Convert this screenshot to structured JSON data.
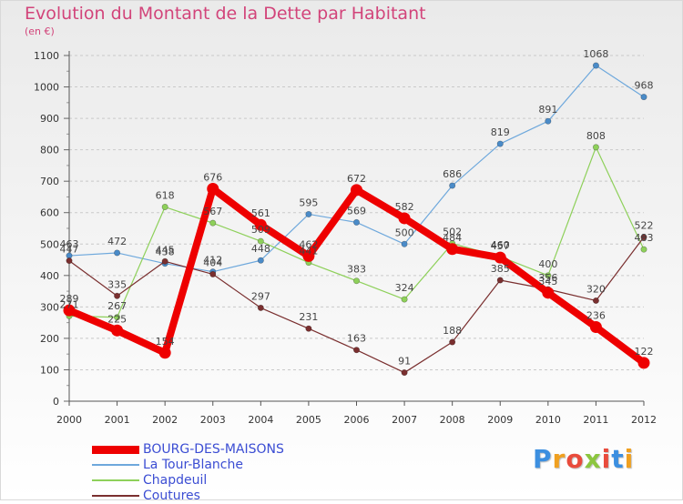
{
  "title": "Evolution du Montant de la Dette par Habitant",
  "subtitle": "(en €)",
  "colors": {
    "title": "#d2447a",
    "legend_text": "#3b4dd3",
    "axis_text": "#333333",
    "grid": "#c8c8c8"
  },
  "legend": {
    "items": [
      {
        "label": "BOURG-DES-MAISONS",
        "color": "#ee0000"
      },
      {
        "label": "La Tour-Blanche",
        "color": "#6ea8dc"
      },
      {
        "label": "Chapdeuil",
        "color": "#8ed05a"
      },
      {
        "label": "Coutures",
        "color": "#7a2f2f"
      }
    ]
  },
  "logo": {
    "text": "Proxiti",
    "letter_colors": [
      "#3c8fe0",
      "#f0a020",
      "#e94b3c",
      "#8cc63f",
      "#e94b3c",
      "#3c8fe0",
      "#f0a020"
    ]
  },
  "chart_data": {
    "type": "line",
    "title": "Evolution du Montant de la Dette par Habitant",
    "subtitle": "(en €)",
    "xlabel": "",
    "ylabel": "",
    "x": [
      "2000",
      "2001",
      "2002",
      "2003",
      "2004",
      "2005",
      "2006",
      "2007",
      "2008",
      "2009",
      "2010",
      "2011",
      "2012"
    ],
    "ylim": [
      0,
      1100
    ],
    "yticks": [
      0,
      100,
      200,
      300,
      400,
      500,
      600,
      700,
      800,
      900,
      1000,
      1100
    ],
    "grid": "horizontal",
    "legend_position": "bottom-left",
    "series": [
      {
        "name": "BOURG-DES-MAISONS",
        "color": "#ee0000",
        "values": [
          289,
          225,
          154,
          676,
          561,
          462,
          672,
          582,
          484,
          457,
          345,
          236,
          122
        ]
      },
      {
        "name": "La Tour-Blanche",
        "color": "#4a8bc8",
        "values": [
          463,
          472,
          438,
          412,
          448,
          595,
          569,
          500,
          686,
          819,
          891,
          1068,
          968
        ]
      },
      {
        "name": "Chapdeuil",
        "color": "#8ed05a",
        "values": [
          271,
          267,
          618,
          567,
          509,
          441,
          383,
          324,
          502,
          460,
          400,
          808,
          483
        ]
      },
      {
        "name": "Coutures",
        "color": "#7a2f2f",
        "values": [
          447,
          335,
          445,
          404,
          297,
          231,
          163,
          91,
          188,
          385,
          356,
          320,
          522
        ]
      }
    ]
  }
}
